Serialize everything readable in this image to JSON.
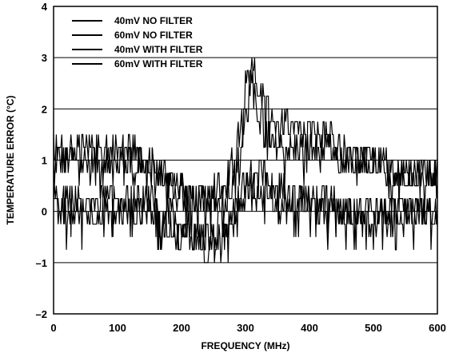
{
  "chart_data": {
    "type": "line",
    "title": "",
    "xlabel": "FREQUENCY (MHz)",
    "ylabel": "TEMPERATURE ERROR (°C)",
    "xlim": [
      0,
      600
    ],
    "ylim": [
      -2,
      4
    ],
    "x_ticks": [
      "0",
      "100",
      "200",
      "300",
      "400",
      "500",
      "600"
    ],
    "y_ticks": [
      "–2",
      "–1",
      "0",
      "1",
      "2",
      "3",
      "4"
    ],
    "grid": "horizontal",
    "legend_position": "top-left",
    "line_color": "#000000",
    "series": [
      {
        "name": "40mV NO FILTER",
        "x": [
          0,
          30,
          60,
          90,
          120,
          150,
          180,
          210,
          240,
          270,
          290,
          300,
          310,
          320,
          330,
          350,
          380,
          410,
          430,
          450,
          480,
          510,
          540,
          560,
          600
        ],
        "values": [
          1.0,
          1.0,
          1.0,
          1.0,
          1.0,
          1.0,
          0.6,
          0.3,
          0.3,
          0.3,
          1.0,
          1.8,
          2.5,
          2.0,
          1.5,
          1.2,
          1.2,
          1.2,
          1.2,
          1.0,
          0.9,
          0.9,
          0.8,
          0.8,
          0.8
        ]
      },
      {
        "name": "60mV NO FILTER",
        "x": [
          0,
          30,
          60,
          90,
          120,
          150,
          180,
          210,
          240,
          270,
          290,
          300,
          310,
          320,
          330,
          350,
          380,
          410,
          430,
          450,
          480,
          510,
          540,
          560,
          600
        ],
        "values": [
          1.2,
          1.2,
          1.2,
          1.2,
          1.2,
          1.0,
          0.6,
          0.3,
          0.3,
          0.5,
          1.5,
          2.5,
          3.0,
          2.5,
          2.0,
          1.8,
          1.5,
          1.5,
          1.5,
          1.2,
          1.0,
          1.0,
          0.8,
          0.8,
          0.8
        ]
      },
      {
        "name": "40mV WITH FILTER",
        "x": [
          0,
          30,
          60,
          90,
          120,
          150,
          180,
          210,
          240,
          270,
          290,
          300,
          310,
          320,
          330,
          350,
          380,
          410,
          430,
          450,
          480,
          510,
          540,
          560,
          600
        ],
        "values": [
          0.0,
          0.0,
          0.0,
          0.0,
          0.0,
          0.0,
          -0.3,
          -0.5,
          -0.6,
          -0.2,
          0.2,
          0.4,
          0.5,
          0.5,
          0.5,
          0.3,
          0.2,
          0.1,
          0.1,
          0.0,
          0.0,
          0.0,
          0.0,
          0.0,
          0.0
        ]
      },
      {
        "name": "60mV WITH FILTER",
        "x": [
          0,
          30,
          60,
          90,
          120,
          150,
          180,
          210,
          240,
          270,
          290,
          300,
          310,
          320,
          330,
          350,
          380,
          410,
          430,
          450,
          480,
          510,
          540,
          560,
          600
        ],
        "values": [
          0.2,
          0.2,
          0.2,
          0.2,
          0.2,
          0.2,
          0.0,
          -0.3,
          -0.7,
          -0.3,
          0.3,
          0.6,
          0.7,
          0.7,
          0.7,
          0.5,
          0.3,
          0.3,
          0.2,
          0.1,
          0.1,
          0.1,
          0.1,
          0.1,
          0.1
        ]
      }
    ]
  }
}
